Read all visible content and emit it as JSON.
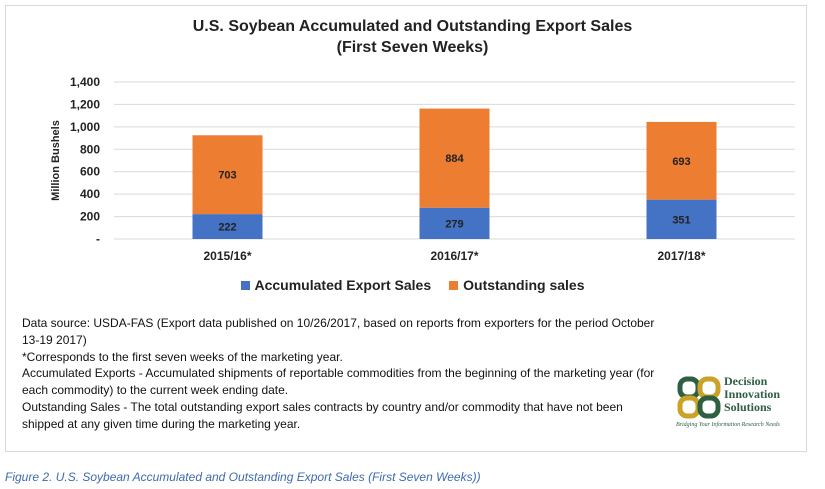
{
  "colors": {
    "accumulated": "#4472c4",
    "outstanding": "#ed7d31",
    "grid": "#d9d9d9",
    "logo_green": "#2e5f43",
    "logo_gold": "#c9a227",
    "caption": "#3d6bb0"
  },
  "chart_data": {
    "type": "bar",
    "stacked": true,
    "title": "U.S. Soybean Accumulated and Outstanding Export Sales",
    "subtitle": "(First Seven Weeks)",
    "categories": [
      "2015/16*",
      "2016/17*",
      "2017/18*"
    ],
    "series": [
      {
        "name": "Accumulated Export Sales",
        "values": [
          222,
          279,
          351
        ]
      },
      {
        "name": "Outstanding sales",
        "values": [
          703,
          884,
          693
        ]
      }
    ],
    "xlabel": "",
    "ylabel": "Million Bushels",
    "ylim": [
      0,
      1400
    ],
    "yticks": [
      0,
      200,
      400,
      600,
      800,
      1000,
      1200,
      1400
    ],
    "ytick_labels": [
      "-",
      "200",
      "400",
      "600",
      "800",
      "1,000",
      "1,200",
      "1,400"
    ],
    "grid": true,
    "legend_position": "bottom"
  },
  "notes": {
    "line1": "Data source: USDA-FAS (Export data published  on 10/26/2017, based on reports from exporters for the period October 13-19 2017)",
    "line2": "*Corresponds to the first seven weeks of the marketing year.",
    "line3": "Accumulated Exports - Accumulated shipments of reportable commodities from the beginning of the marketing year (for each commodity) to the current week ending date.",
    "line4": "Outstanding Sales - The total outstanding export sales contracts by country and/or commodity that have not been shipped at any given time during the marketing year."
  },
  "logo": {
    "line1": "Decision",
    "line2": "Innovation",
    "line3": "Solutions",
    "tagline": "Bridging Your Information Research Needs"
  },
  "caption": "Figure 2. U.S. Soybean Accumulated and Outstanding Export Sales (First Seven Weeks))"
}
